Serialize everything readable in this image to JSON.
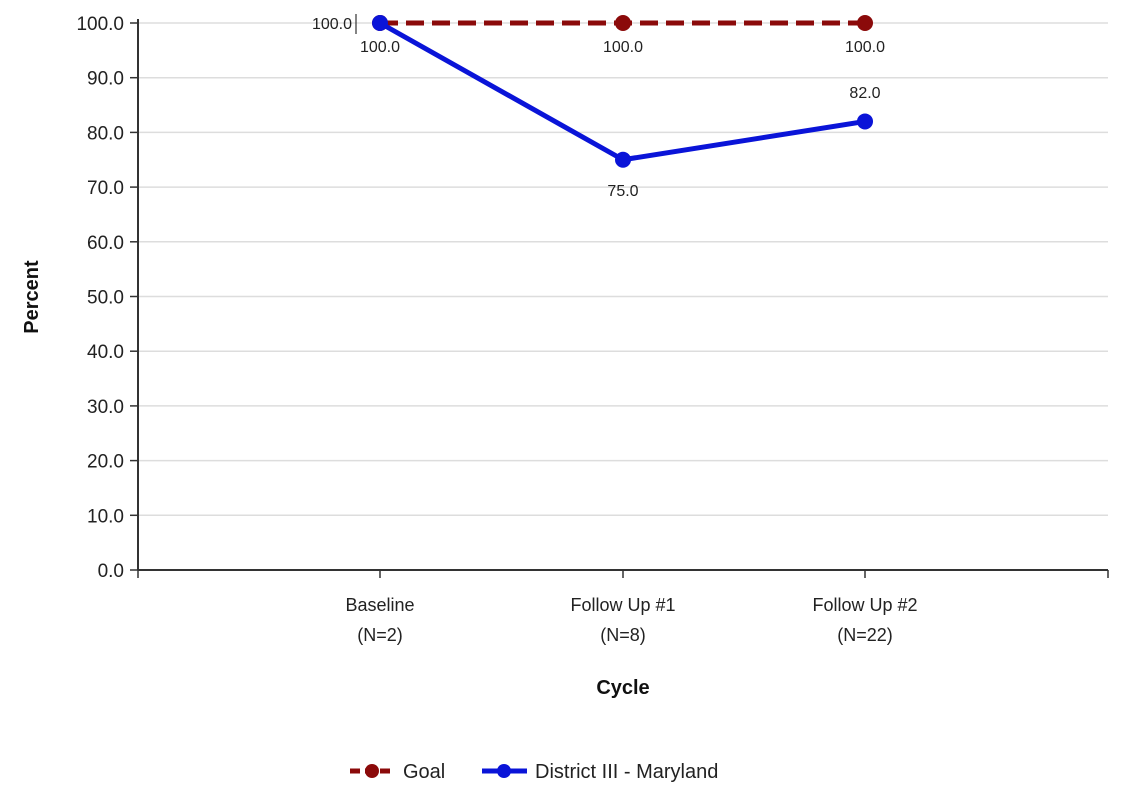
{
  "chart_data": {
    "type": "line",
    "title": "",
    "xlabel": "Cycle",
    "ylabel": "Percent",
    "categories": [
      [
        "Baseline",
        "(N=2)"
      ],
      [
        "Follow Up #1",
        "(N=8)"
      ],
      [
        "Follow Up #2",
        "(N=22)"
      ]
    ],
    "ylim": [
      0,
      100
    ],
    "yticks": [
      "0.0",
      "10.0",
      "20.0",
      "30.0",
      "40.0",
      "50.0",
      "60.0",
      "70.0",
      "80.0",
      "90.0",
      "100.0"
    ],
    "grid": true,
    "legend_position": "bottom",
    "series": [
      {
        "name": "Goal",
        "values": [
          100,
          100,
          100
        ],
        "labels": [
          "100.0",
          "100.0",
          "100.0"
        ],
        "color": "#8b0a0a",
        "dashed": true
      },
      {
        "name": "District III - Maryland",
        "values": [
          100,
          75,
          82
        ],
        "labels": [
          "100.0",
          "75.0",
          "82.0"
        ],
        "color": "#0a14d8",
        "dashed": false
      }
    ]
  }
}
